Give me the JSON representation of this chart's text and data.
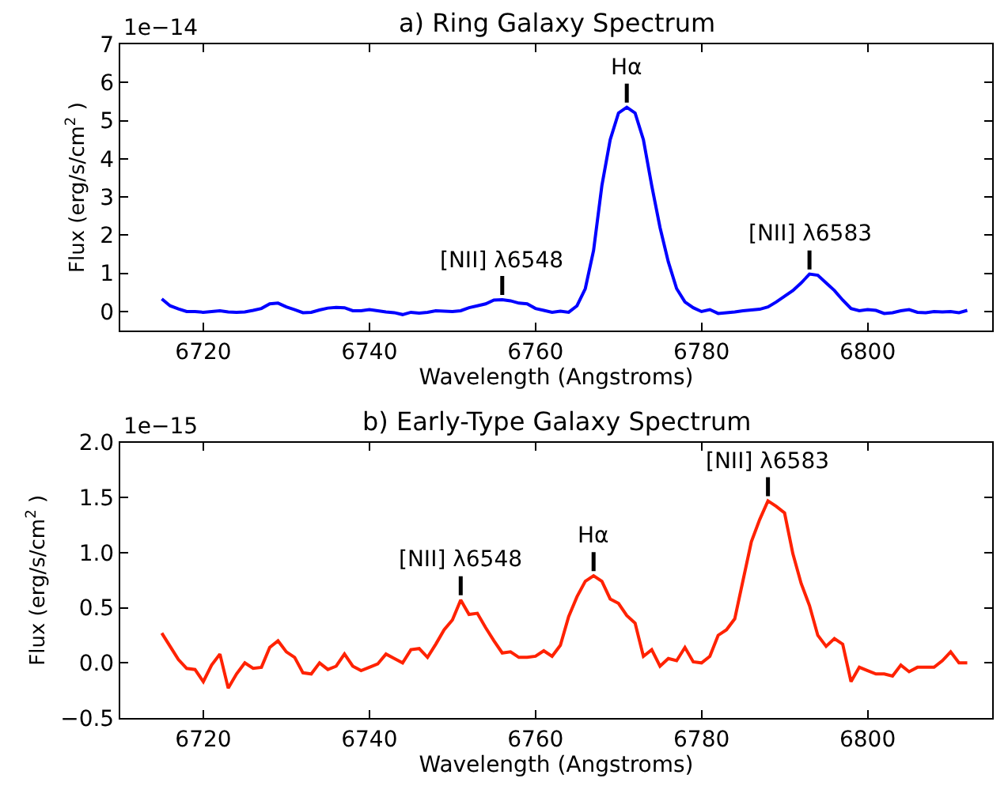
{
  "chart_data": [
    {
      "type": "line",
      "title": "a) Ring Galaxy Spectrum",
      "xlabel": "Wavelength (Angstroms)",
      "ylabel": "Flux (erg/s/cm$^{2}$ )",
      "x": [
        6715,
        6716,
        6717,
        6718,
        6719,
        6720,
        6721,
        6722,
        6723,
        6724,
        6725,
        6726,
        6727,
        6728,
        6729,
        6730,
        6731,
        6732,
        6733,
        6734,
        6735,
        6736,
        6737,
        6738,
        6739,
        6740,
        6741,
        6742,
        6743,
        6744,
        6745,
        6746,
        6747,
        6748,
        6749,
        6750,
        6751,
        6752,
        6753,
        6754,
        6755,
        6756,
        6757,
        6758,
        6759,
        6760,
        6761,
        6762,
        6763,
        6764,
        6765,
        6766,
        6767,
        6768,
        6769,
        6770,
        6771,
        6772,
        6773,
        6774,
        6775,
        6776,
        6777,
        6778,
        6779,
        6780,
        6781,
        6782,
        6783,
        6784,
        6785,
        6786,
        6787,
        6788,
        6789,
        6790,
        6791,
        6792,
        6793,
        6794,
        6795,
        6796,
        6797,
        6798,
        6799,
        6800,
        6801,
        6802,
        6803,
        6804,
        6805,
        6806,
        6807,
        6808,
        6809,
        6810,
        6811,
        6812
      ],
      "series": [
        {
          "color": "#0000ff",
          "values": [
            0.33,
            0.15,
            0.07,
            0.0,
            0.0,
            -0.02,
            0.0,
            0.02,
            -0.01,
            -0.02,
            -0.01,
            0.03,
            0.08,
            0.2,
            0.22,
            0.12,
            0.05,
            -0.03,
            -0.02,
            0.04,
            0.09,
            0.11,
            0.1,
            0.02,
            0.02,
            0.05,
            0.02,
            -0.01,
            -0.03,
            -0.08,
            -0.02,
            -0.04,
            -0.02,
            0.02,
            0.01,
            0.0,
            0.02,
            0.1,
            0.15,
            0.2,
            0.3,
            0.31,
            0.28,
            0.22,
            0.2,
            0.08,
            0.03,
            -0.02,
            0.01,
            -0.02,
            0.15,
            0.6,
            1.6,
            3.3,
            4.5,
            5.2,
            5.35,
            5.2,
            4.5,
            3.3,
            2.2,
            1.3,
            0.6,
            0.25,
            0.1,
            0.0,
            0.05,
            -0.05,
            -0.03,
            -0.01,
            0.02,
            0.04,
            0.06,
            0.12,
            0.25,
            0.4,
            0.55,
            0.75,
            0.98,
            0.95,
            0.75,
            0.55,
            0.3,
            0.08,
            0.02,
            0.05,
            0.03,
            -0.05,
            -0.03,
            0.02,
            0.05,
            -0.02,
            -0.03,
            0.0,
            -0.01,
            0.0,
            -0.03,
            0.03
          ]
        }
      ],
      "xlim": [
        6710,
        6815
      ],
      "xticks": [
        6720,
        6740,
        6760,
        6780,
        6800
      ],
      "ylim": [
        -0.5,
        7
      ],
      "yticks": [
        0,
        1,
        2,
        3,
        4,
        5,
        6,
        7
      ],
      "annotations": [
        "1e−14",
        {
          "text": "[NII] λ6548",
          "x": 6756,
          "y": 0.31
        },
        {
          "text": "Hα",
          "x": 6771,
          "y": 5.35
        },
        {
          "text": "[NII] λ6583",
          "x": 6793,
          "y": 0.98
        }
      ],
      "marker": "none",
      "line_style": "solid"
    },
    {
      "type": "line",
      "title": "b) Early-Type Galaxy Spectrum",
      "xlabel": "Wavelength (Angstroms)",
      "ylabel": "Flux (erg/s/cm$^{2}$ )",
      "x": [
        6715,
        6716,
        6717,
        6718,
        6719,
        6720,
        6721,
        6722,
        6723,
        6724,
        6725,
        6726,
        6727,
        6728,
        6729,
        6730,
        6731,
        6732,
        6733,
        6734,
        6735,
        6736,
        6737,
        6738,
        6739,
        6740,
        6741,
        6742,
        6743,
        6744,
        6745,
        6746,
        6747,
        6748,
        6749,
        6750,
        6751,
        6752,
        6753,
        6754,
        6755,
        6756,
        6757,
        6758,
        6759,
        6760,
        6761,
        6762,
        6763,
        6764,
        6765,
        6766,
        6767,
        6768,
        6769,
        6770,
        6771,
        6772,
        6773,
        6774,
        6775,
        6776,
        6777,
        6778,
        6779,
        6780,
        6781,
        6782,
        6783,
        6784,
        6785,
        6786,
        6787,
        6788,
        6789,
        6790,
        6791,
        6792,
        6793,
        6794,
        6795,
        6796,
        6797,
        6798,
        6799,
        6800,
        6801,
        6802,
        6803,
        6804,
        6805,
        6806,
        6807,
        6808,
        6809,
        6810,
        6811,
        6812
      ],
      "series": [
        {
          "color": "#ff2200",
          "values": [
            0.27,
            0.15,
            0.03,
            -0.05,
            -0.06,
            -0.17,
            -0.02,
            0.08,
            -0.23,
            -0.1,
            0.0,
            -0.05,
            -0.04,
            0.14,
            0.2,
            0.1,
            0.05,
            -0.09,
            -0.1,
            0.0,
            -0.06,
            -0.03,
            0.08,
            -0.03,
            -0.07,
            -0.04,
            -0.01,
            0.08,
            0.04,
            0.0,
            0.12,
            0.13,
            0.05,
            0.17,
            0.3,
            0.39,
            0.57,
            0.44,
            0.45,
            0.32,
            0.2,
            0.09,
            0.1,
            0.05,
            0.05,
            0.06,
            0.11,
            0.06,
            0.16,
            0.42,
            0.6,
            0.74,
            0.79,
            0.74,
            0.58,
            0.54,
            0.43,
            0.36,
            0.06,
            0.12,
            -0.03,
            0.04,
            0.02,
            0.14,
            0.01,
            0.0,
            0.06,
            0.25,
            0.3,
            0.4,
            0.75,
            1.1,
            1.3,
            1.47,
            1.42,
            1.36,
            0.99,
            0.72,
            0.52,
            0.25,
            0.15,
            0.22,
            0.17,
            -0.17,
            -0.04,
            -0.07,
            -0.1,
            -0.1,
            -0.12,
            -0.02,
            -0.08,
            -0.04,
            -0.04,
            -0.04,
            0.02,
            0.1,
            0.0,
            0.0
          ]
        }
      ],
      "xlim": [
        6710,
        6815
      ],
      "xticks": [
        6720,
        6740,
        6760,
        6780,
        6800
      ],
      "ylim": [
        -0.5,
        2.0
      ],
      "yticks": [
        {
          "value": -0.5,
          "label": "−0.5"
        },
        {
          "value": 0,
          "label": "0.0"
        },
        {
          "value": 0.5,
          "label": "0.5"
        },
        {
          "value": 1.0,
          "label": "1.0"
        },
        {
          "value": 1.5,
          "label": "1.5"
        },
        {
          "value": 2.0,
          "label": "2.0"
        }
      ],
      "annotations": [
        "1e−15",
        {
          "text": "[NII] λ6548",
          "x": 6751,
          "y": 0.57
        },
        {
          "text": "Hα",
          "x": 6767,
          "y": 0.79
        },
        {
          "text": "[NII] λ6583",
          "x": 6788,
          "y": 1.47
        }
      ],
      "marker": "none",
      "line_style": "solid"
    }
  ]
}
